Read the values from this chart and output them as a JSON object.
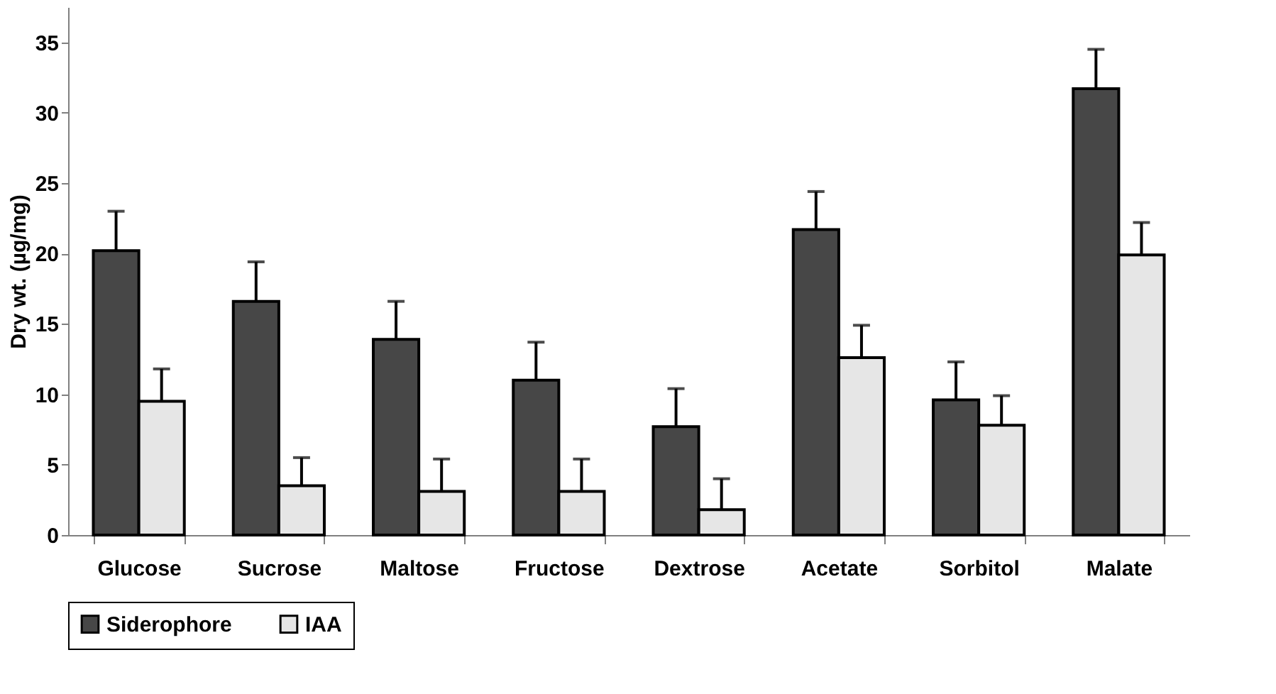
{
  "chart_data": {
    "type": "bar",
    "ylabel": "Dry wt. (µg/mg)",
    "categories": [
      "Glucose",
      "Sucrose",
      "Maltose",
      "Fructose",
      "Dextrose",
      "Acetate",
      "Sorbitol",
      "Malate"
    ],
    "series": [
      {
        "name": "Siderophore",
        "color": "#474747",
        "values": [
          20.2,
          16.6,
          13.9,
          11.0,
          7.7,
          21.7,
          9.6,
          31.7
        ],
        "errors": [
          [
            20.2,
            23.0
          ],
          [
            16.6,
            19.4
          ],
          [
            13.9,
            16.6
          ],
          [
            11.0,
            13.7
          ],
          [
            7.7,
            10.4
          ],
          [
            21.7,
            24.4
          ],
          [
            9.6,
            12.3
          ],
          [
            31.7,
            34.5
          ]
        ]
      },
      {
        "name": "IAA",
        "color": "#e6e6e6",
        "values": [
          9.5,
          3.5,
          3.1,
          3.1,
          1.8,
          12.6,
          7.8,
          19.9
        ],
        "errors": [
          [
            9.5,
            11.8
          ],
          [
            3.5,
            5.5
          ],
          [
            3.1,
            5.4
          ],
          [
            3.1,
            5.4
          ],
          [
            1.8,
            4.0
          ],
          [
            12.6,
            14.9
          ],
          [
            7.8,
            9.9
          ],
          [
            19.9,
            22.2
          ]
        ]
      }
    ],
    "ylim": [
      0,
      37.5
    ],
    "yticks": [
      0,
      5,
      10,
      15,
      20,
      25,
      30,
      35
    ],
    "grid": false,
    "legend": "bottom"
  }
}
